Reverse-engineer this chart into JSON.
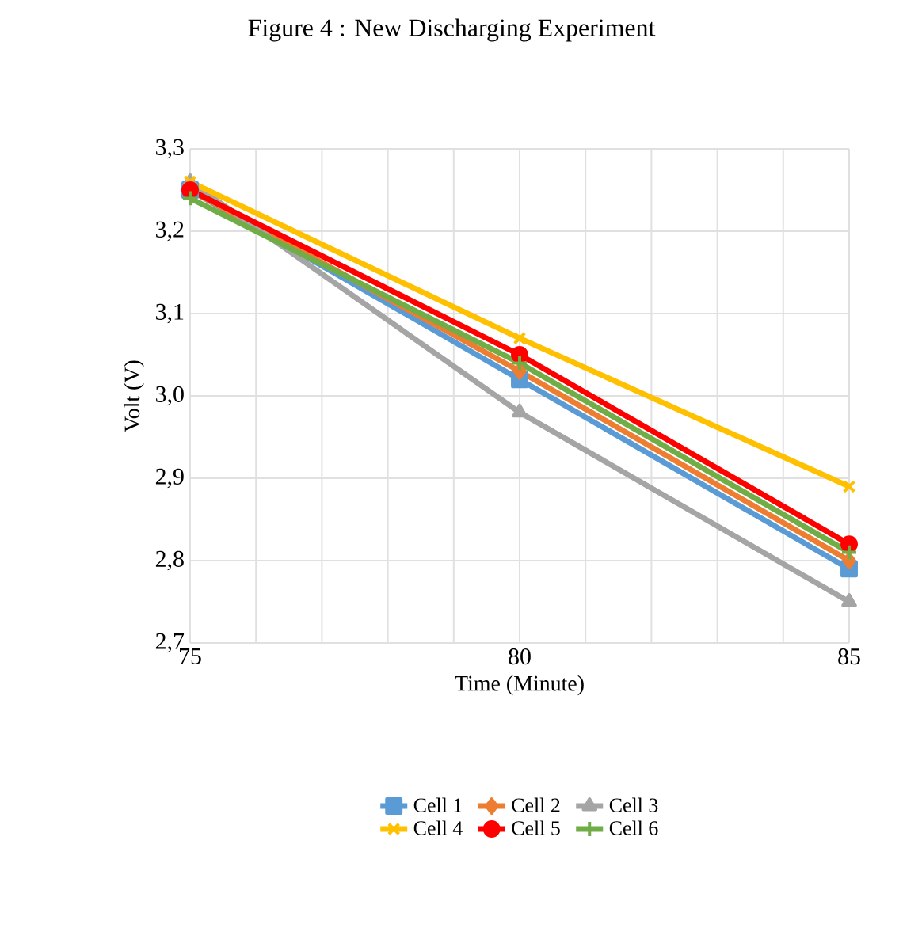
{
  "chart_data": {
    "type": "line",
    "title": "Figure 4 : New Discharging Experiment",
    "xlabel": "Time (Minute)",
    "ylabel": "Volt (V)",
    "x": [
      75,
      80,
      85
    ],
    "series": [
      {
        "name": "Cell 1",
        "color": "#5b9bd5",
        "marker": "square",
        "values": [
          3.25,
          3.02,
          2.79
        ]
      },
      {
        "name": "Cell 2",
        "color": "#ed7d31",
        "marker": "diamond",
        "values": [
          3.25,
          3.03,
          2.8
        ]
      },
      {
        "name": "Cell 3",
        "color": "#a5a5a5",
        "marker": "triangle",
        "values": [
          3.26,
          2.98,
          2.75
        ]
      },
      {
        "name": "Cell 4",
        "color": "#ffc000",
        "marker": "cross",
        "values": [
          3.26,
          3.07,
          2.89
        ]
      },
      {
        "name": "Cell 5",
        "color": "#ff0000",
        "marker": "circle",
        "values": [
          3.25,
          3.05,
          2.82
        ]
      },
      {
        "name": "Cell 6",
        "color": "#70ad47",
        "marker": "plus",
        "values": [
          3.24,
          3.04,
          2.81
        ]
      }
    ],
    "xlim": [
      75,
      85
    ],
    "xticks": [
      75,
      80,
      85
    ],
    "ylim": [
      2.7,
      3.3
    ],
    "yticks": [
      {
        "value": 2.7,
        "label": "2,7"
      },
      {
        "value": 2.8,
        "label": "2,8"
      },
      {
        "value": 2.9,
        "label": "2,9"
      },
      {
        "value": 3.0,
        "label": "3,0"
      },
      {
        "value": 3.1,
        "label": "3,1"
      },
      {
        "value": 3.2,
        "label": "3,2"
      },
      {
        "value": 3.3,
        "label": "3,3"
      }
    ],
    "grid": true,
    "legend": "bottom",
    "line_style": "solid"
  }
}
